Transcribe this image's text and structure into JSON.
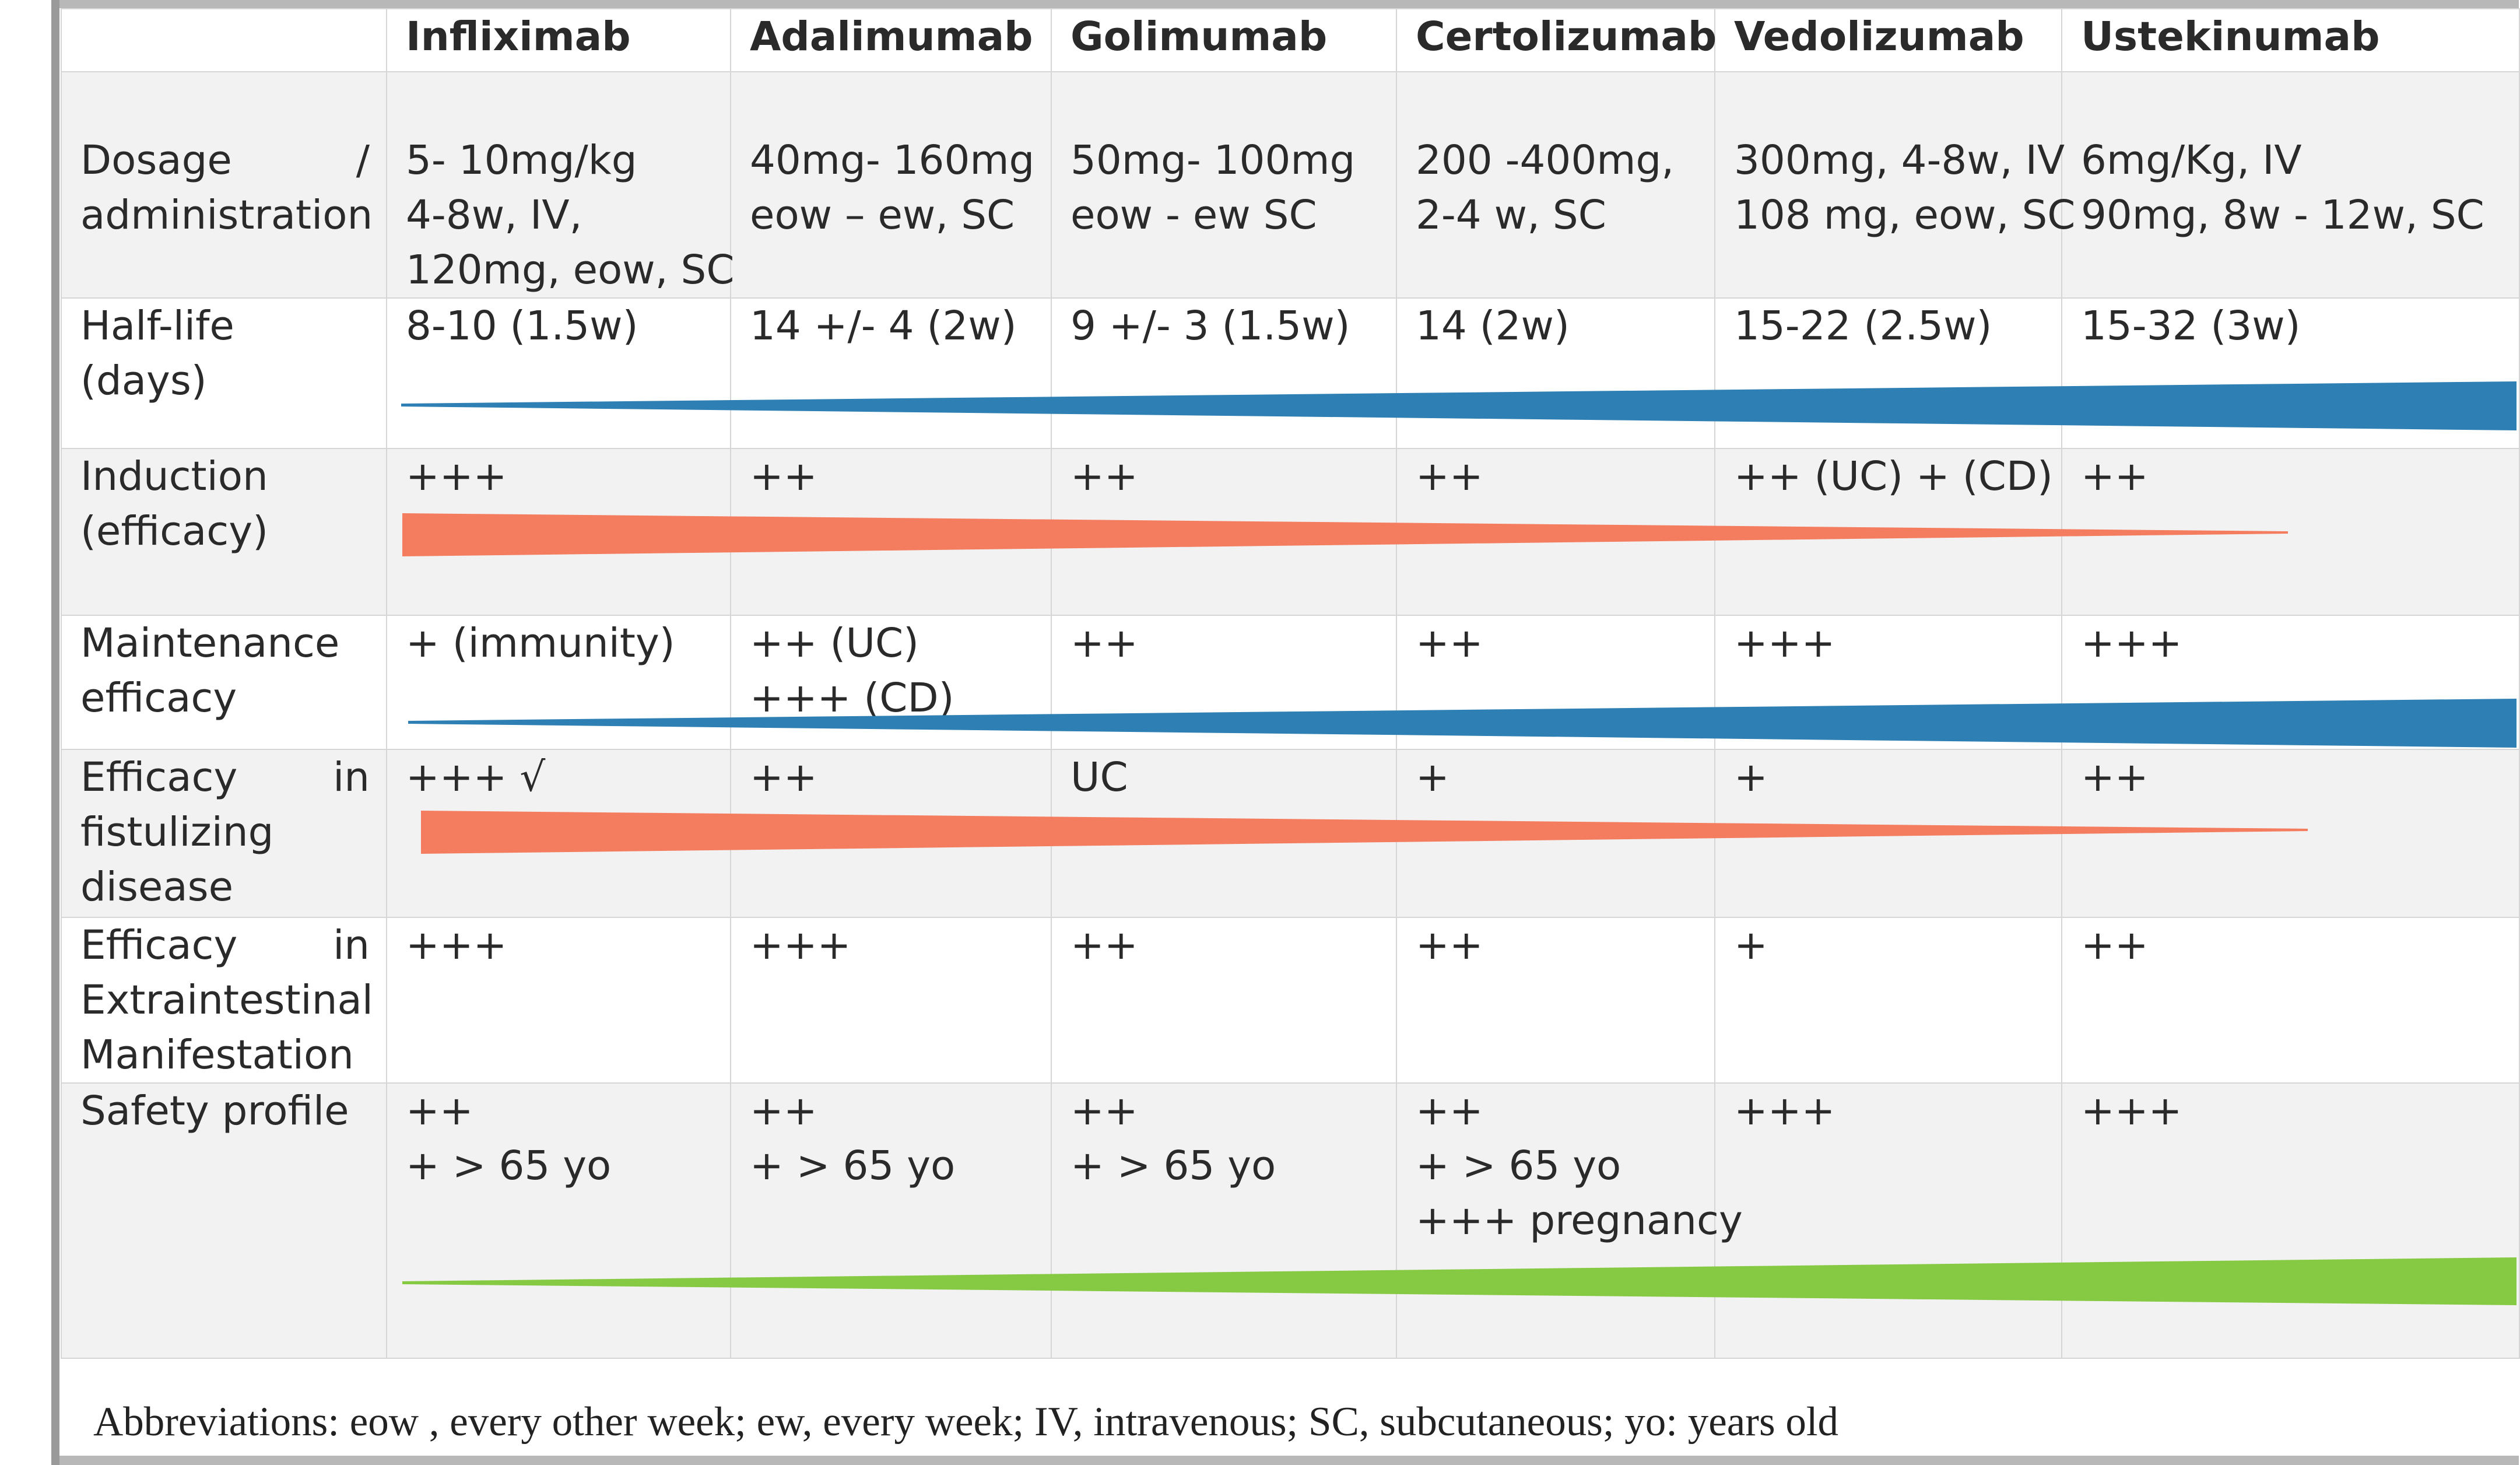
{
  "colors": {
    "blue_wedge": "#2e7fb3",
    "orange_wedge": "#f47c5f",
    "green_wedge": "#86c943",
    "grid": "#d6d6d6",
    "shade": "#f2f2f2"
  },
  "header": {
    "columns": [
      "Infliximab",
      "Adalimumab",
      "Golimumab",
      "Certolizumab",
      "Vedolizumab",
      "Ustekinumab"
    ]
  },
  "rows": [
    {
      "label": "Dosage / administration",
      "cells": [
        [
          "5- 10mg/kg",
          "4-8w, IV,",
          "120mg, eow, SC"
        ],
        [
          "40mg- 160mg",
          "eow – ew, SC"
        ],
        [
          "50mg- 100mg",
          "eow - ew SC"
        ],
        [
          "200 -400mg,",
          "2-4 w, SC"
        ],
        [
          "300mg, 4-8w, IV",
          "108 mg, eow, SC"
        ],
        [
          "6mg/Kg, IV",
          "90mg, 8w - 12w, SC"
        ]
      ]
    },
    {
      "label": "Half-life (days)",
      "cells": [
        [
          "8-10 (1.5w)"
        ],
        [
          "14 +/- 4 (2w)"
        ],
        [
          "9 +/- 3 (1.5w)"
        ],
        [
          "14 (2w)"
        ],
        [
          "15-22 (2.5w)"
        ],
        [
          "15-32 (3w)"
        ]
      ]
    },
    {
      "label": "Induction (efficacy)",
      "cells": [
        [
          "+++"
        ],
        [
          "++"
        ],
        [
          "++"
        ],
        [
          "++"
        ],
        [
          "++ (UC) + (CD)"
        ],
        [
          "++"
        ]
      ]
    },
    {
      "label": "Maintenance efficacy",
      "cells": [
        [
          "+ (immunity)"
        ],
        [
          "++   (UC)",
          "+++ (CD)"
        ],
        [
          "++"
        ],
        [
          "++"
        ],
        [
          "+++"
        ],
        [
          "+++"
        ]
      ]
    },
    {
      "label": "Efficacy in fistulizing disease",
      "cells": [
        [
          "+++ √"
        ],
        [
          "++"
        ],
        [
          "UC"
        ],
        [
          "+"
        ],
        [
          "+"
        ],
        [
          "++"
        ]
      ]
    },
    {
      "label": "Efficacy in Extraintestinal Manifestation",
      "cells": [
        [
          "+++"
        ],
        [
          "+++"
        ],
        [
          "++"
        ],
        [
          "++"
        ],
        [
          "+"
        ],
        [
          "++"
        ]
      ]
    },
    {
      "label": "Safety profile",
      "cells": [
        [
          "++",
          "+ > 65 yo"
        ],
        [
          "++",
          "+ > 65 yo"
        ],
        [
          "++",
          "+ > 65 yo"
        ],
        [
          "++",
          "+ > 65 yo",
          "+++ pregnancy"
        ],
        [
          "+++"
        ],
        [
          "+++"
        ]
      ]
    }
  ],
  "footnote": "Abbreviations: eow , every other week; ew, every week; IV, intravenous; SC, subcutaneous; yo: years old"
}
